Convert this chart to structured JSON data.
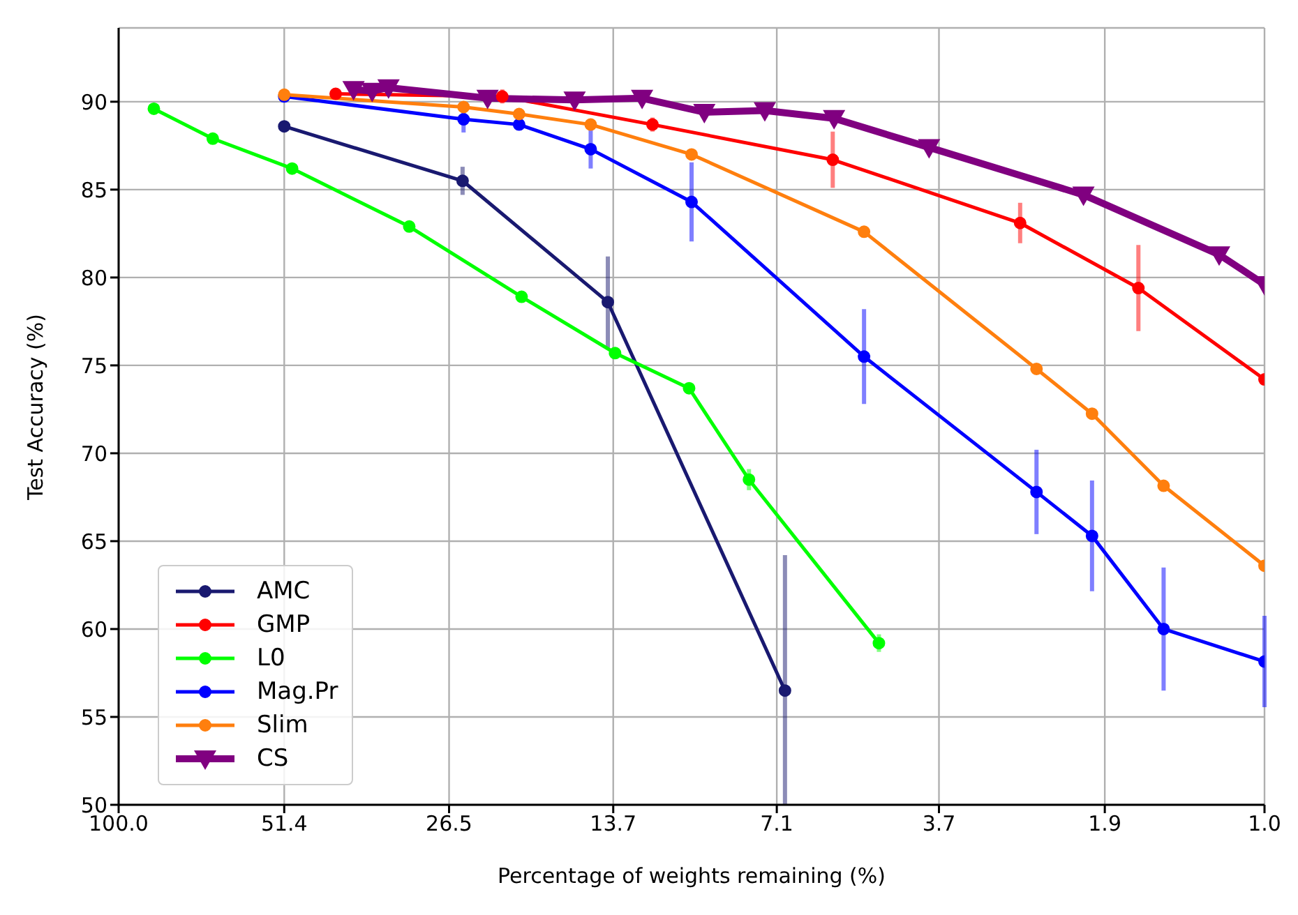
{
  "chart_data": {
    "type": "line",
    "xlabel": "Percentage of weights remaining (%)",
    "ylabel": "Test Accuracy (%)",
    "log": "x",
    "xlim": [
      100,
      1
    ],
    "xticks": [
      {
        "value": 100,
        "label": "100.0"
      },
      51.4,
      26.5,
      13.7,
      7.1,
      3.7,
      1.9,
      {
        "value": 1,
        "label": "1.0"
      }
    ],
    "ylim": [
      50,
      94.2
    ],
    "yticks": [
      50,
      55,
      60,
      65,
      70,
      75,
      80,
      85,
      90
    ],
    "grid": true,
    "legend": "bottom left",
    "line_style": "solid",
    "series": [
      {
        "name": "AMC",
        "color": "#191970",
        "marker": "circle",
        "x": [
          51.4,
          25.1,
          14.0,
          6.87
        ],
        "values": [
          88.6,
          85.5,
          78.6,
          56.5
        ],
        "errors": [
          null,
          0.8,
          2.6,
          [
            50,
            64.2
          ]
        ]
      },
      {
        "name": "GMP",
        "color": "#ff0000",
        "marker": "circle",
        "x": [
          41.8,
          21.4,
          11.7,
          5.67,
          2.67,
          1.66,
          1
        ],
        "values": [
          90.45,
          90.3,
          88.7,
          86.7,
          83.1,
          79.4,
          74.2
        ],
        "errors": [
          null,
          0.4,
          0.4,
          1.6,
          1.15,
          2.45,
          null
        ]
      },
      {
        "name": "L0",
        "color": "#00ff00",
        "marker": "circle",
        "x": [
          86.8,
          68.5,
          49.8,
          31.1,
          19.8,
          13.6,
          10.1,
          7.94,
          4.71
        ],
        "values": [
          89.6,
          87.9,
          86.2,
          82.9,
          78.9,
          75.7,
          73.7,
          68.5,
          59.2
        ],
        "errors": [
          null,
          null,
          null,
          null,
          null,
          null,
          null,
          0.6,
          0.5
        ]
      },
      {
        "name": "Mag.Pr",
        "color": "#0000ff",
        "marker": "circle",
        "x": [
          51.4,
          25,
          20,
          15,
          10,
          5,
          2.5,
          2,
          1.5,
          1
        ],
        "values": [
          90.3,
          89,
          88.7,
          87.3,
          84.3,
          75.5,
          67.8,
          65.3,
          60,
          58.15
        ],
        "errors": [
          null,
          0.75,
          0.3,
          1.1,
          2.25,
          2.7,
          2.4,
          3.15,
          3.5,
          2.6
        ]
      },
      {
        "name": "Slim",
        "color": "#ff7f0e",
        "marker": "circle",
        "x": [
          51.4,
          25,
          20,
          15,
          10,
          5,
          2.5,
          2,
          1.5,
          1
        ],
        "values": [
          90.4,
          89.7,
          89.3,
          88.7,
          87,
          82.6,
          74.8,
          72.25,
          68.15,
          63.6
        ]
      },
      {
        "name": "CS",
        "color": "#800080",
        "marker": "triangle",
        "x": [
          38.9,
          36.1,
          33.8,
          22.7,
          16,
          12.2,
          9.5,
          7.45,
          5.64,
          3.85,
          2.07,
          1.2,
          1
        ],
        "values": [
          90.7,
          90.6,
          90.8,
          90.2,
          90.1,
          90.2,
          89.4,
          89.5,
          89.05,
          87.4,
          84.7,
          81.3,
          79.6
        ]
      }
    ]
  }
}
